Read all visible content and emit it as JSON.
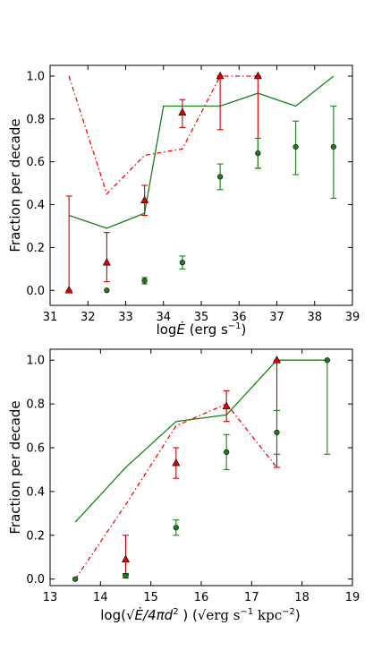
{
  "chart_data": [
    {
      "type": "line",
      "xlabel": "logĐ (erg s⁻¹)",
      "xlabel_parts": {
        "prefix": "log",
        "symbol": "Ė",
        "rest": " (erg s",
        "sup": "−1",
        "close": ")"
      },
      "ylabel": "Fraction per decade",
      "xlim": [
        31,
        39
      ],
      "ylim": [
        -0.07,
        1.05
      ],
      "xticks": [
        "31",
        "32",
        "33",
        "34",
        "35",
        "36",
        "37",
        "38",
        "39"
      ],
      "yticks": [
        "0.0",
        "0.2",
        "0.4",
        "0.6",
        "0.8",
        "1.0"
      ],
      "grid": false,
      "series": [
        {
          "style": "solid-line",
          "color": "#1a7f1a",
          "x": [
            31.5,
            32.5,
            33.5,
            34.0,
            35.5,
            36.5,
            37.5,
            38.5
          ],
          "y": [
            0.35,
            0.29,
            0.36,
            0.86,
            0.86,
            0.92,
            0.86,
            1.0
          ]
        },
        {
          "style": "dash-dot-line",
          "color": "#ff0000",
          "x": [
            31.5,
            32.5,
            33.5,
            34.5,
            35.5,
            36.5
          ],
          "y": [
            1.0,
            0.45,
            0.63,
            0.66,
            1.0,
            1.0
          ]
        },
        {
          "style": "triangle-points",
          "color": "#cc0000",
          "x": [
            31.5,
            32.5,
            33.5,
            34.5,
            35.5,
            36.5
          ],
          "y": [
            0.0,
            0.13,
            0.42,
            0.83,
            1.0,
            1.0
          ],
          "err_low": [
            0.0,
            0.04,
            0.35,
            0.76,
            0.75,
            0.57
          ],
          "err_high": [
            0.44,
            0.27,
            0.49,
            0.89,
            1.0,
            1.0
          ]
        },
        {
          "style": "circle-points",
          "color": "#1a7f1a",
          "x": [
            32.5,
            33.5,
            34.5,
            35.5,
            36.5,
            37.5,
            38.5
          ],
          "y": [
            0.0,
            0.045,
            0.13,
            0.53,
            0.64,
            0.67,
            0.67
          ],
          "err_low": [
            0.0,
            0.03,
            0.1,
            0.47,
            0.57,
            0.54,
            0.43
          ],
          "err_high": [
            0.0,
            0.06,
            0.16,
            0.59,
            0.71,
            0.79,
            0.86
          ]
        }
      ]
    },
    {
      "type": "line",
      "xlabel": "log(√Ė/4πd²) (√(erg s⁻¹ kpc⁻²))",
      "xlabel_parts": {
        "a": "log(",
        "b": "Ė/4πd",
        "c": "2",
        "d": " ) (",
        "e": "erg s",
        "f": "−1",
        "g": " kpc",
        "h": "−2",
        "i": ")"
      },
      "ylabel": "Fraction per decade",
      "xlim": [
        13,
        19
      ],
      "ylim": [
        -0.03,
        1.05
      ],
      "xticks": [
        "13",
        "14",
        "15",
        "16",
        "17",
        "18",
        "19"
      ],
      "yticks": [
        "0.0",
        "0.2",
        "0.4",
        "0.6",
        "0.8",
        "1.0"
      ],
      "grid": false,
      "series": [
        {
          "style": "solid-line",
          "color": "#1a7f1a",
          "x": [
            13.5,
            14.5,
            15.5,
            16.5,
            17.5,
            18.5
          ],
          "y": [
            0.26,
            0.51,
            0.72,
            0.75,
            1.0,
            1.0
          ]
        },
        {
          "style": "dash-dot-line",
          "color": "#ff0000",
          "x": [
            13.5,
            14.5,
            15.5,
            16.5,
            17.5
          ],
          "y": [
            0.0,
            0.34,
            0.7,
            0.8,
            0.51
          ]
        },
        {
          "style": "triangle-points",
          "color": "#cc0000",
          "x": [
            14.5,
            15.5,
            16.5,
            17.5
          ],
          "y": [
            0.09,
            0.53,
            0.79,
            1.0
          ],
          "err_low": [
            0.02,
            0.46,
            0.72,
            0.51
          ],
          "err_high": [
            0.2,
            0.6,
            0.86,
            1.0
          ]
        },
        {
          "style": "circle-points",
          "color": "#1a7f1a",
          "x": [
            13.5,
            14.5,
            15.5,
            16.5,
            17.5,
            18.5
          ],
          "y": [
            0.0,
            0.015,
            0.235,
            0.58,
            0.67,
            1.0
          ],
          "err_low": [
            0.0,
            0.005,
            0.2,
            0.5,
            0.57,
            0.57
          ],
          "err_high": [
            0.0,
            0.025,
            0.27,
            0.66,
            0.77,
            1.0
          ]
        }
      ]
    }
  ]
}
